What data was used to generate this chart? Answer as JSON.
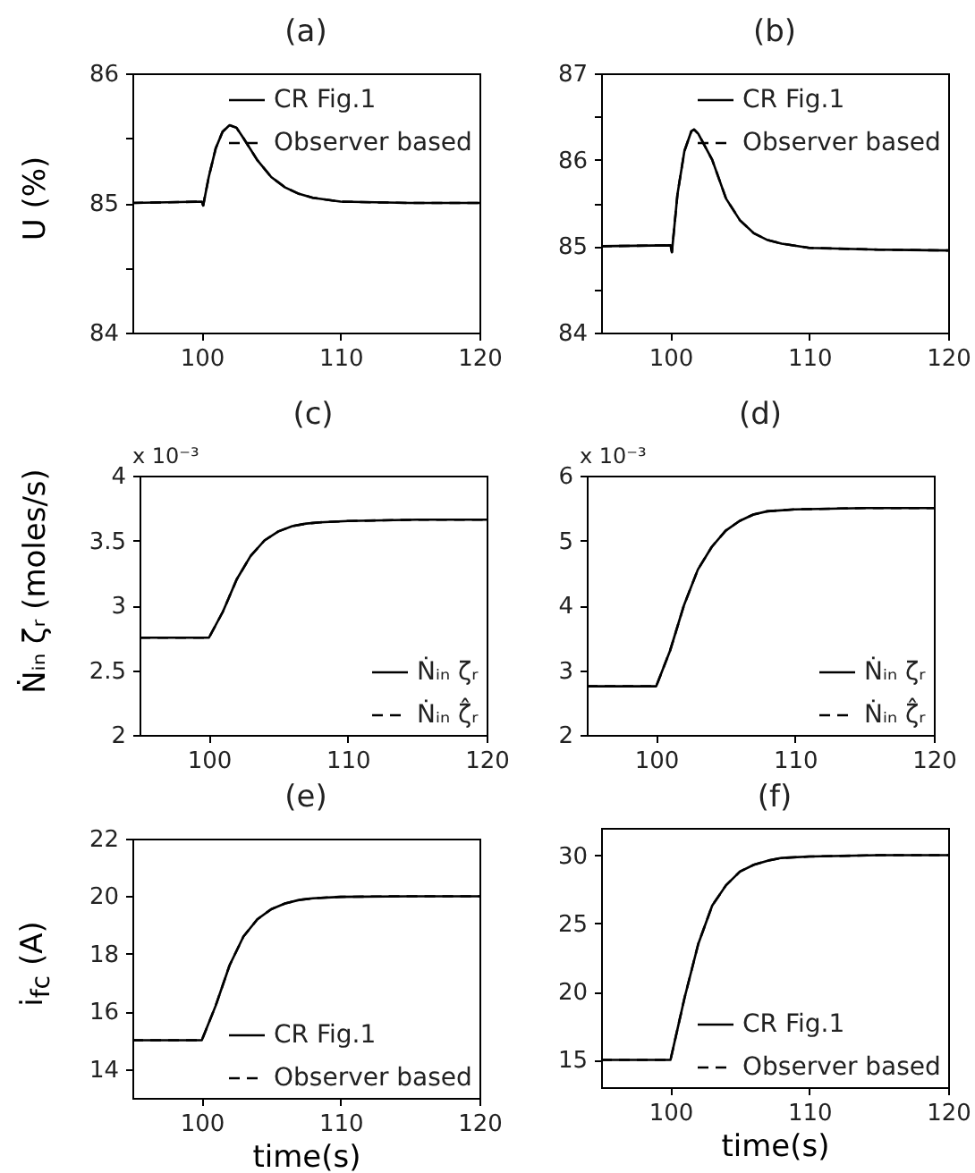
{
  "chart_data": [
    {
      "type": "line",
      "title": "(a)",
      "ylabel": "U (%)",
      "xlim": [
        95,
        120
      ],
      "xticks": [
        100,
        110,
        120
      ],
      "ylim": [
        84,
        86
      ],
      "yticks": [
        84,
        {
          "value": 84.5,
          "label": null
        },
        85,
        {
          "value": 85.5,
          "label": null
        },
        86
      ],
      "legend": "top right",
      "grid": false,
      "x": [
        95,
        100,
        100.1,
        100.5,
        101,
        101.5,
        102,
        102.5,
        103,
        104,
        105,
        106,
        107,
        108,
        110,
        115,
        120
      ],
      "series": [
        {
          "name": "CR Fig.1",
          "color": "#000000",
          "line_style": "solid",
          "values": [
            85,
            85.01,
            84.98,
            85.2,
            85.42,
            85.55,
            85.6,
            85.58,
            85.5,
            85.33,
            85.2,
            85.12,
            85.07,
            85.04,
            85.01,
            85,
            85
          ]
        },
        {
          "name": "Observer based",
          "color": "#000000",
          "line_style": "dashed",
          "values": [
            85,
            85.01,
            84.98,
            85.2,
            85.42,
            85.55,
            85.6,
            85.58,
            85.5,
            85.33,
            85.2,
            85.12,
            85.07,
            85.04,
            85.01,
            85,
            85
          ]
        }
      ]
    },
    {
      "type": "line",
      "title": "(b)",
      "xlim": [
        95,
        120
      ],
      "xticks": [
        100,
        110,
        120
      ],
      "ylim": [
        84,
        87
      ],
      "yticks": [
        84,
        {
          "value": 84.5,
          "label": null
        },
        85,
        {
          "value": 85.5,
          "label": null
        },
        86,
        {
          "value": 86.5,
          "label": null
        },
        87
      ],
      "legend": "top right",
      "grid": false,
      "x": [
        95,
        100,
        100.1,
        100.5,
        101,
        101.5,
        101.7,
        102,
        102.5,
        103,
        104,
        105,
        106,
        107,
        108,
        110,
        115,
        120
      ],
      "series": [
        {
          "name": "CR Fig.1",
          "color": "#000000",
          "line_style": "solid",
          "values": [
            85,
            85.01,
            84.93,
            85.6,
            86.1,
            86.33,
            86.35,
            86.3,
            86.15,
            86,
            85.55,
            85.3,
            85.15,
            85.07,
            85.03,
            84.98,
            84.96,
            84.95
          ]
        },
        {
          "name": "Observer based",
          "color": "#000000",
          "line_style": "dashed",
          "values": [
            85,
            85.01,
            84.93,
            85.6,
            86.1,
            86.33,
            86.35,
            86.3,
            86.15,
            86,
            85.55,
            85.3,
            85.15,
            85.07,
            85.03,
            84.98,
            84.96,
            84.95
          ]
        }
      ]
    },
    {
      "type": "line",
      "title": "(c)",
      "ylabel": "Ṅᵢₙ ζᵣ  (moles/s)",
      "annotations": [
        "x 10⁻³"
      ],
      "xlim": [
        95,
        120
      ],
      "xticks": [
        100,
        110,
        120
      ],
      "ylim": [
        2,
        4
      ],
      "yticks": [
        2,
        2.5,
        3,
        3.5,
        4
      ],
      "legend": "bottom right",
      "grid": false,
      "x": [
        95,
        100,
        101,
        102,
        103,
        104,
        105,
        106,
        107,
        108,
        110,
        115,
        120
      ],
      "series": [
        {
          "name": "Ṅᵢₙ ζᵣ",
          "color": "#000000",
          "line_style": "solid",
          "values": [
            2.75,
            2.75,
            2.95,
            3.2,
            3.38,
            3.5,
            3.57,
            3.61,
            3.63,
            3.64,
            3.65,
            3.66,
            3.66
          ]
        },
        {
          "name": "Ṅᵢₙ ζ̂ᵣ",
          "color": "#000000",
          "line_style": "dashed",
          "values": [
            2.75,
            2.75,
            2.95,
            3.2,
            3.38,
            3.5,
            3.57,
            3.61,
            3.63,
            3.64,
            3.65,
            3.66,
            3.66
          ]
        }
      ]
    },
    {
      "type": "line",
      "title": "(d)",
      "annotations": [
        "x 10⁻³"
      ],
      "xlim": [
        95,
        120
      ],
      "xticks": [
        100,
        110,
        120
      ],
      "ylim": [
        2,
        6
      ],
      "yticks": [
        2,
        3,
        4,
        5,
        6
      ],
      "legend": "bottom right",
      "grid": false,
      "x": [
        95,
        100,
        101,
        102,
        103,
        104,
        105,
        106,
        107,
        108,
        110,
        115,
        120
      ],
      "series": [
        {
          "name": "Ṅᵢₙ ζᵣ",
          "color": "#000000",
          "line_style": "solid",
          "values": [
            2.75,
            2.75,
            3.3,
            4.0,
            4.55,
            4.9,
            5.15,
            5.3,
            5.4,
            5.45,
            5.48,
            5.5,
            5.5
          ]
        },
        {
          "name": "Ṅᵢₙ ζ̂ᵣ",
          "color": "#000000",
          "line_style": "dashed",
          "values": [
            2.75,
            2.75,
            3.3,
            4.0,
            4.55,
            4.9,
            5.15,
            5.3,
            5.4,
            5.45,
            5.48,
            5.5,
            5.5
          ]
        }
      ]
    },
    {
      "type": "line",
      "title": "(e)",
      "xlabel": "time(s)",
      "ylabel": "i$_{fc}$  (A)",
      "xlim": [
        95,
        120
      ],
      "xticks": [
        100,
        110,
        120
      ],
      "ylim": [
        13,
        22
      ],
      "yticks": [
        14,
        16,
        18,
        20,
        22
      ],
      "legend": "bottom right",
      "grid": false,
      "x": [
        95,
        100,
        101,
        102,
        103,
        104,
        105,
        106,
        107,
        108,
        110,
        115,
        120
      ],
      "series": [
        {
          "name": "CR Fig.1",
          "color": "#000000",
          "line_style": "solid",
          "values": [
            15,
            15,
            16.2,
            17.6,
            18.6,
            19.2,
            19.55,
            19.75,
            19.87,
            19.93,
            19.98,
            20,
            20
          ]
        },
        {
          "name": "Observer based",
          "color": "#000000",
          "line_style": "dashed",
          "values": [
            15,
            15,
            16.2,
            17.6,
            18.6,
            19.2,
            19.55,
            19.75,
            19.87,
            19.93,
            19.98,
            20,
            20
          ]
        }
      ]
    },
    {
      "type": "line",
      "title": "(f)",
      "xlabel": "time(s)",
      "xlim": [
        95,
        120
      ],
      "xticks": [
        100,
        110,
        120
      ],
      "ylim": [
        13,
        32
      ],
      "yticks": [
        15,
        20,
        25,
        30
      ],
      "legend": "bottom right",
      "grid": false,
      "x": [
        95,
        100,
        101,
        102,
        103,
        104,
        105,
        106,
        107,
        108,
        110,
        115,
        120
      ],
      "series": [
        {
          "name": "CR Fig.1",
          "color": "#000000",
          "line_style": "solid",
          "values": [
            15,
            15,
            19.5,
            23.5,
            26.3,
            27.8,
            28.8,
            29.3,
            29.6,
            29.8,
            29.9,
            30,
            30
          ]
        },
        {
          "name": "Observer based",
          "color": "#000000",
          "line_style": "dashed",
          "values": [
            15,
            15,
            19.5,
            23.5,
            26.3,
            27.8,
            28.8,
            29.3,
            29.6,
            29.8,
            29.9,
            30,
            30
          ]
        }
      ]
    }
  ]
}
